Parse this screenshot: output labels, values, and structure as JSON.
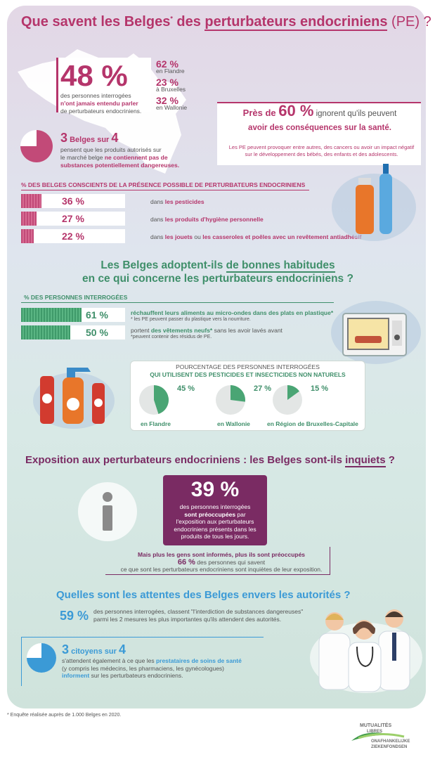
{
  "header": {
    "title_pre": "Que savent les Belges",
    "title_sup": "*",
    "title_mid": " des ",
    "title_ul": "perturbateurs endocriniens",
    "title_post": " (PE) ?"
  },
  "awareness": {
    "main_pct": "48 %",
    "line1": "des personnes interrogées",
    "line2": "n'ont jamais entendu parler",
    "line3": "de perturbateurs endocriniens.",
    "regions": [
      {
        "pct": "62 %",
        "label": "en Flandre"
      },
      {
        "pct": "23 %",
        "label": "à Bruxelles"
      },
      {
        "pct": "32 %",
        "label": "en Wallonie"
      }
    ]
  },
  "health": {
    "pre": "Près de ",
    "pct": "60 %",
    "post": " ignorent qu'ils peuvent",
    "line2": "avoir des conséquences sur la santé.",
    "note": "Les PE peuvent provoquer entre autres, des cancers ou avoir un impact négatif sur le développement des bébés, des enfants et des adolescents."
  },
  "products": {
    "num": "3",
    "mid": " Belges sur ",
    "den": "4",
    "line1": "pensent que les produits autorisés sur",
    "line2": "le marché belge ",
    "line2_bold": "ne contiennent pas de",
    "line3_bold": "substances potentiellement dangereuses.",
    "pie_fraction": 0.75
  },
  "conscious": {
    "header": "% DES BELGES CONSCIENTS DE LA PRÉSENCE POSSIBLE DE PERTURBATEURS ENDOCRINIENS",
    "bars": [
      {
        "pct": "36 %",
        "value": 36,
        "pre": "dans ",
        "hl": "les pesticides",
        "post": "",
        "hl2": "",
        "post2": ""
      },
      {
        "pct": "27 %",
        "value": 27,
        "pre": "dans ",
        "hl": "les produits d'hygiène personnelle",
        "post": "",
        "hl2": "",
        "post2": ""
      },
      {
        "pct": "22 %",
        "value": 22,
        "pre": "dans ",
        "hl": "les jouets",
        "post": " ou ",
        "hl2": "les casseroles et poêles avec un revêtement antiadhésif",
        "post2": ""
      }
    ]
  },
  "habits": {
    "title1_pre": "Les Belges adoptent-ils ",
    "title1_ul": "de bonnes habitudes",
    "title2": "en ce qui concerne les perturbateurs endocriniens ?",
    "header": "% DES PERSONNES INTERROGÉES",
    "bars": [
      {
        "pct": "61 %",
        "value": 61,
        "line1": "réchauffent leurs aliments au micro-ondes dans des plats en plastique*",
        "line2": "* les PE peuvent passer du plastique vers la nourriture."
      },
      {
        "pct": "50 %",
        "value": 50,
        "line1_pre": "portent ",
        "line1_hl": "des vêtements neufs*",
        "line1_post": " sans les avoir lavés avant",
        "line2": "*peuvent contenir des résidus de PE."
      }
    ]
  },
  "pesticides": {
    "title1": "POURCENTAGE DES PERSONNES INTERROGÉES",
    "title2": "QUI UTILISENT DES PESTICIDES ET INSECTICIDES NON NATURELS",
    "regions": [
      {
        "pct": "45 %",
        "value": 45,
        "label": "en Flandre"
      },
      {
        "pct": "27 %",
        "value": 27,
        "label": "en Wallonie"
      },
      {
        "pct": "15 %",
        "value": 15,
        "label": "en Région de Bruxelles-Capitale"
      }
    ]
  },
  "worry": {
    "title_pre": "Exposition aux perturbateurs endocriniens : les Belges sont-ils ",
    "title_ul": "inquiets",
    "title_post": " ?",
    "pct": "39 %",
    "line1": "des personnes interrogées",
    "line2_bold": "sont préoccupées",
    "line2": " par",
    "line3": "l'exposition aux perturbateurs endocriniens présents dans les produits de tous les jours.",
    "more_bold": "Mais plus les gens sont informés, plus ils sont préoccupés",
    "more_pct": "66 %",
    "more_mid": " des personnes qui savent",
    "more_line3": "ce que sont les perturbateurs endocriniens sont inquiètes de leur exposition."
  },
  "expectations": {
    "title": "Quelles sont les attentes des Belges envers les autorités ?",
    "pct": "59 %",
    "line1": "des personnes interrogées, classent \"l'interdiction de substances dangereuses\"",
    "line2": "parmi les 2 mesures les plus importantes qu'ils attendent des autorités.",
    "num": "3",
    "mid": " citoyens sur ",
    "den": "4",
    "l1": "s'attendent également à ce que les ",
    "l1_hl": "prestataires de soins de santé",
    "l2": "(y compris les médecins, les pharmaciens, les gynécologues)",
    "l3_hl": "informent",
    "l3": " sur les perturbateurs endocriniens.",
    "pie_fraction": 0.75
  },
  "footer": {
    "note": "* Enquête réalisée auprès de 1.000 Belges en 2020.",
    "logo1": "MUTUALITÉS",
    "logo2": "LIBRES",
    "logo3": "ONAFHANKELIJKE",
    "logo4": "ZIEKENFONDSEN"
  },
  "colors": {
    "plum": "#b5356b",
    "teal": "#3f8f6a",
    "purple": "#7a2b63",
    "blue": "#3b9ad6"
  }
}
